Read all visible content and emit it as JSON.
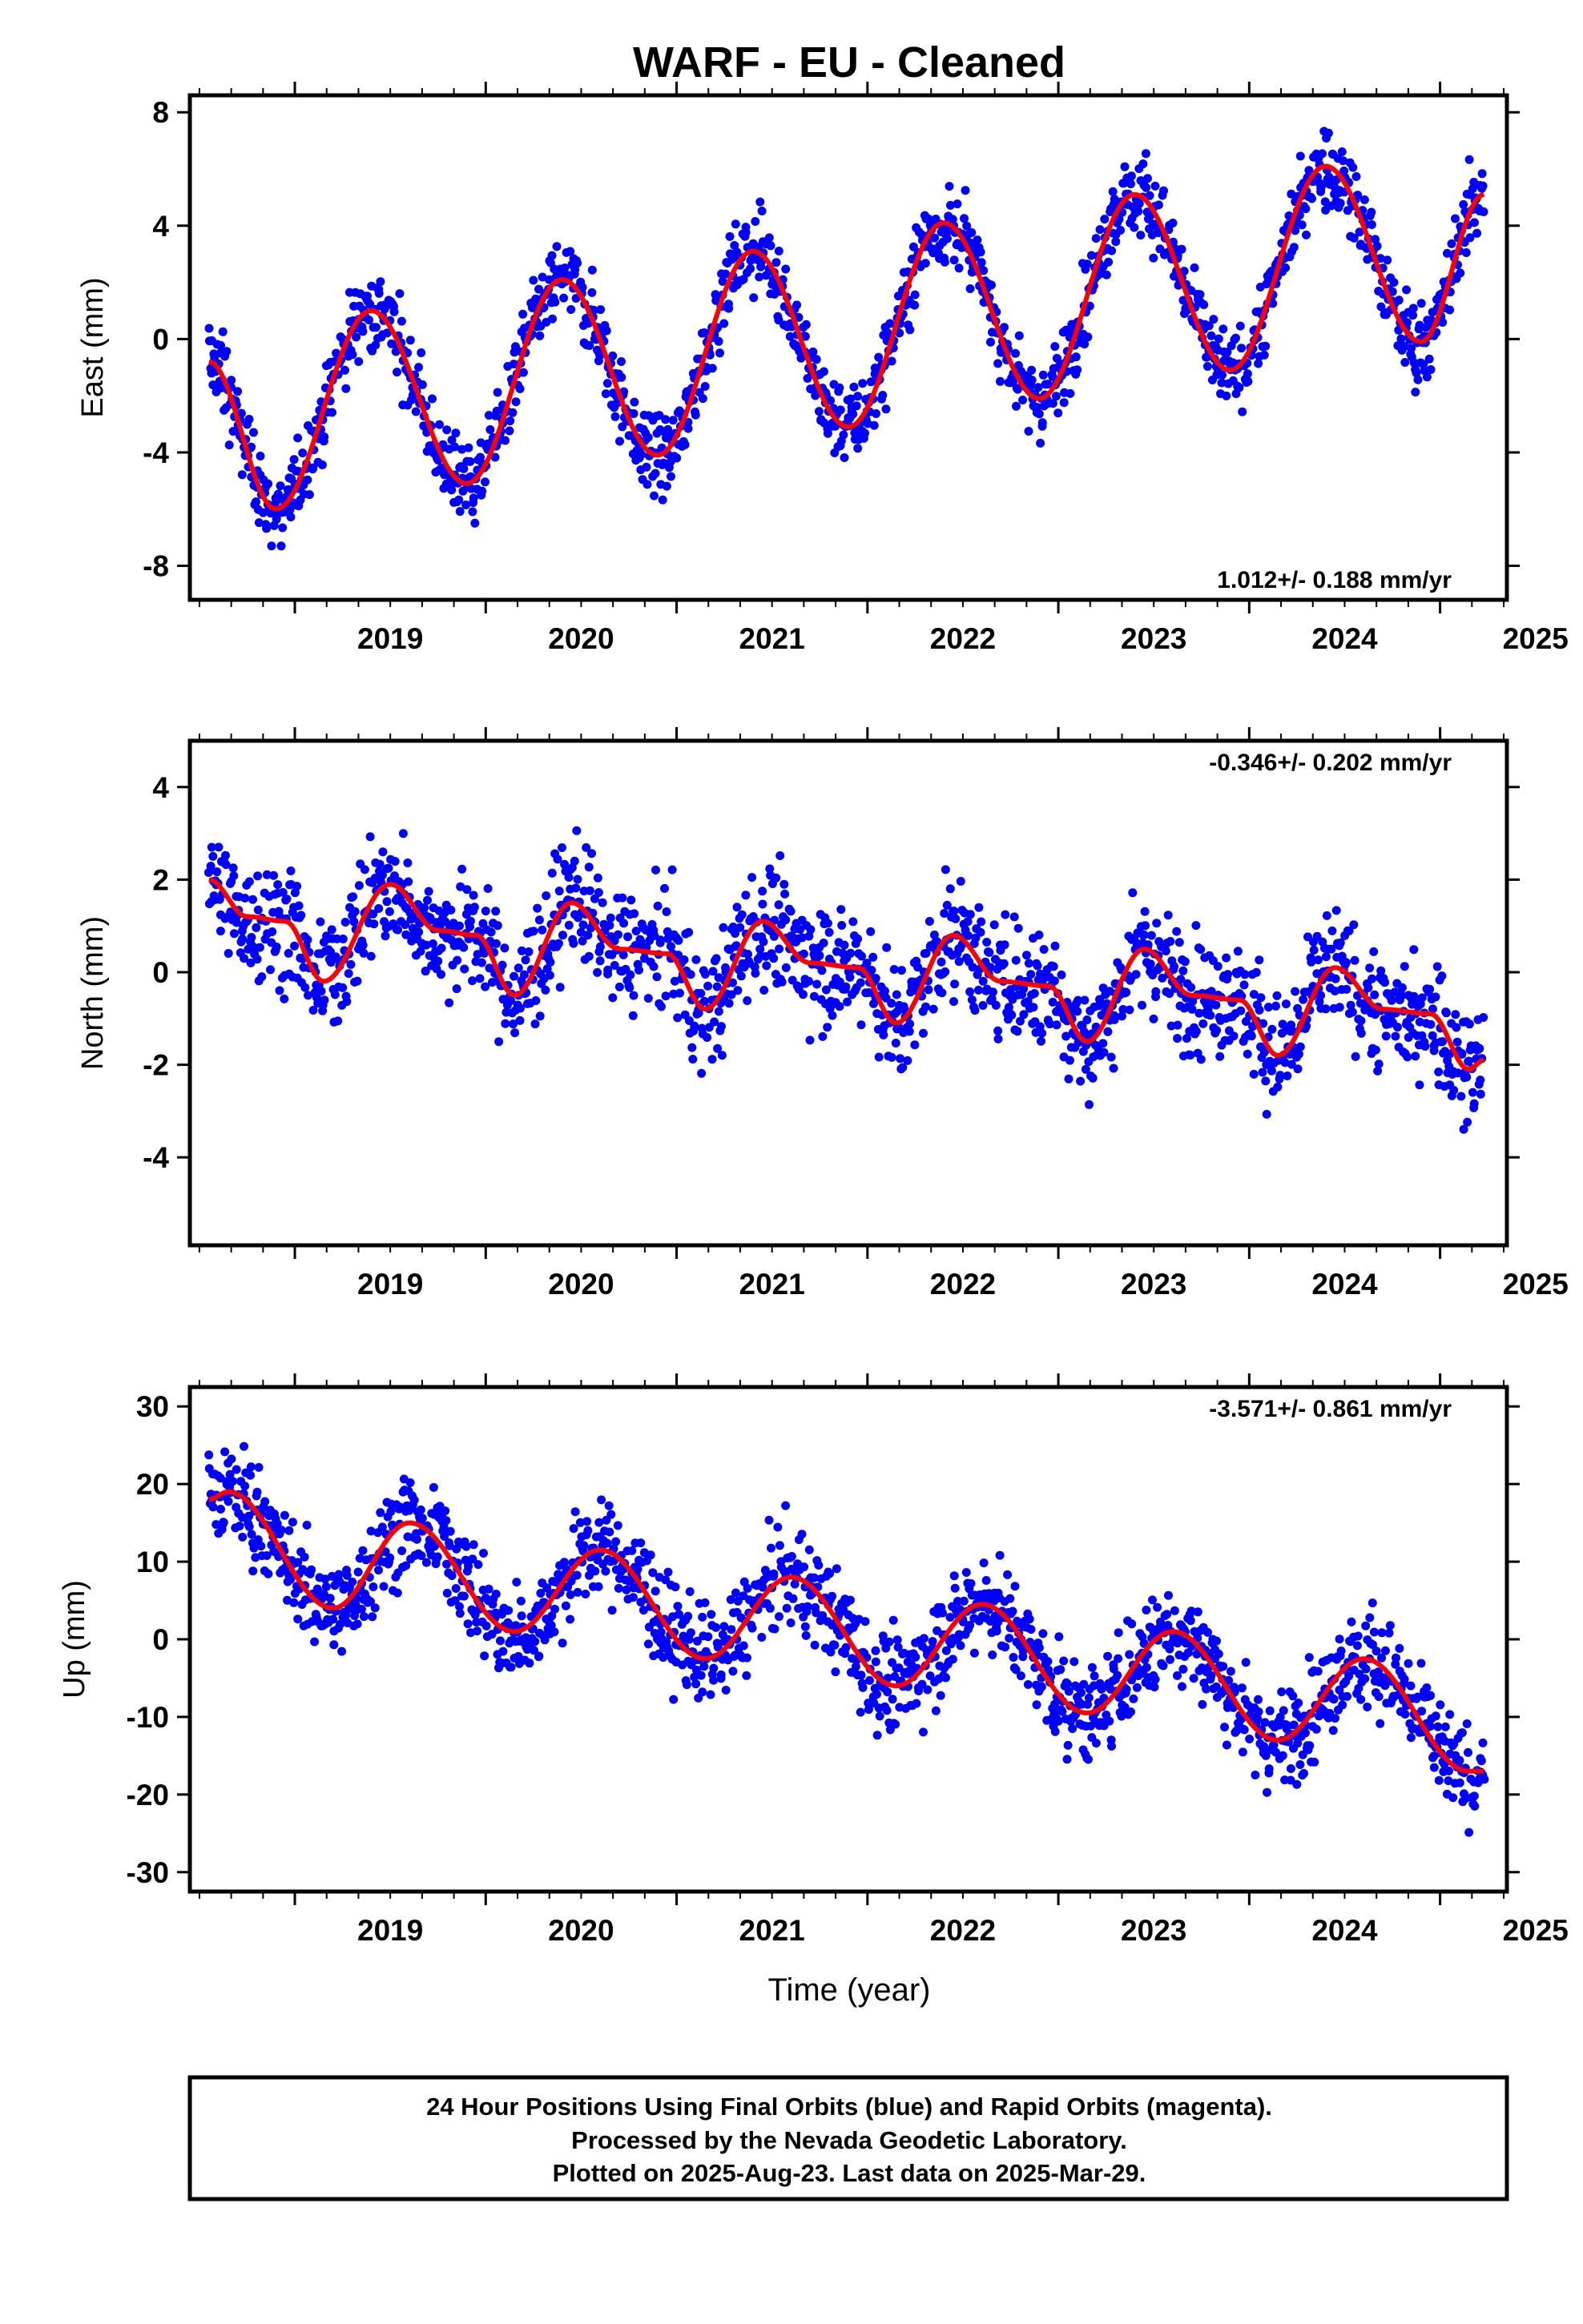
{
  "title": "WARF  - EU - Cleaned",
  "colors": {
    "points": "#0000ff",
    "fit": "#ff0000",
    "frame": "#000000"
  },
  "chart_data": [
    {
      "type": "scatter",
      "ylabel": "East (mm)",
      "xlabel": "",
      "rate_text": "1.012+/- 0.188 mm/yr",
      "rate_position": "bottom-right",
      "xlim": [
        2018.45,
        2025.35
      ],
      "ylim": [
        -9.2,
        8.6
      ],
      "xticks": [
        "2019",
        "2020",
        "2021",
        "2022",
        "2023",
        "2024",
        "2025"
      ],
      "yticks": [
        "8",
        "4",
        "0",
        "-4",
        "-8"
      ],
      "ytick_values": [
        8,
        4,
        0,
        -4,
        -8
      ],
      "grid": false,
      "series": [
        {
          "kind": "points",
          "x_range": [
            2018.55,
            2025.23
          ],
          "amplitude_mm": 3.2,
          "trend_mm_per_yr": 1.012,
          "scatter_sd_mm": 1.0
        },
        {
          "kind": "fit-line",
          "x": [
            2018.55,
            2018.9,
            2019.4,
            2019.9,
            2020.4,
            2020.9,
            2021.4,
            2021.9,
            2022.4,
            2022.9,
            2023.4,
            2023.9,
            2024.4,
            2024.9,
            2025.23
          ],
          "values": [
            -0.8,
            -6.0,
            1.0,
            -5.1,
            2.1,
            -4.1,
            3.1,
            -3.1,
            4.1,
            -2.1,
            5.1,
            -1.1,
            6.1,
            -0.1,
            5.1
          ]
        }
      ]
    },
    {
      "type": "scatter",
      "ylabel": "North (mm)",
      "xlabel": "",
      "rate_text": "-0.346+/- 0.202 mm/yr",
      "rate_position": "top-right",
      "xlim": [
        2018.45,
        2025.35
      ],
      "ylim": [
        -5.9,
        5.0
      ],
      "xticks": [
        "2019",
        "2020",
        "2021",
        "2022",
        "2023",
        "2024",
        "2025"
      ],
      "yticks": [
        "4",
        "2",
        "0",
        "-2",
        "-4"
      ],
      "ytick_values": [
        4,
        2,
        0,
        -2,
        -4
      ],
      "grid": false,
      "series": [
        {
          "kind": "points",
          "x_range": [
            2018.55,
            2025.23
          ],
          "trend_mm_per_yr": -0.346,
          "scatter_sd_mm": 0.9
        },
        {
          "kind": "fit-line",
          "x": [
            2018.55,
            2018.75,
            2018.95,
            2019.15,
            2019.5,
            2019.75,
            2019.95,
            2020.15,
            2020.45,
            2020.7,
            2020.95,
            2021.15,
            2021.45,
            2021.7,
            2021.95,
            2022.15,
            2022.45,
            2022.7,
            2022.95,
            2023.15,
            2023.45,
            2023.7,
            2023.95,
            2024.15,
            2024.45,
            2024.7,
            2024.95,
            2025.15,
            2025.23
          ],
          "values": [
            2.0,
            1.2,
            1.1,
            -0.2,
            1.9,
            0.9,
            0.8,
            -0.5,
            1.5,
            0.5,
            0.4,
            -0.8,
            1.1,
            0.2,
            0.1,
            -1.1,
            0.8,
            -0.2,
            -0.3,
            -1.5,
            0.5,
            -0.5,
            -0.6,
            -1.8,
            0.1,
            -0.8,
            -0.9,
            -2.1,
            -1.9
          ]
        }
      ]
    },
    {
      "type": "scatter",
      "ylabel": "Up (mm)",
      "xlabel": "Time (year)",
      "rate_text": "-3.571+/- 0.861 mm/yr",
      "rate_position": "top-right",
      "xlim": [
        2018.45,
        2025.35
      ],
      "ylim": [
        -32.5,
        32.5
      ],
      "xticks": [
        "2019",
        "2020",
        "2021",
        "2022",
        "2023",
        "2024",
        "2025"
      ],
      "yticks": [
        "30",
        "20",
        "10",
        "0",
        "-10",
        "-20",
        "-30"
      ],
      "ytick_values": [
        30,
        20,
        10,
        0,
        -10,
        -20,
        -30
      ],
      "grid": false,
      "series": [
        {
          "kind": "points",
          "x_range": [
            2018.55,
            2025.23
          ],
          "trend_mm_per_yr": -3.571,
          "scatter_sd_mm": 4.5
        },
        {
          "kind": "fit-line",
          "x": [
            2018.55,
            2018.65,
            2019.2,
            2019.6,
            2020.15,
            2020.6,
            2021.15,
            2021.6,
            2022.15,
            2022.6,
            2023.15,
            2023.6,
            2024.15,
            2024.6,
            2025.15,
            2025.23
          ],
          "values": [
            18.0,
            19.0,
            4.0,
            15.0,
            1.0,
            11.5,
            -2.5,
            8.0,
            -6.0,
            4.5,
            -9.5,
            1.0,
            -13.0,
            -2.5,
            -17.0,
            -17.0
          ]
        }
      ]
    }
  ],
  "footer": {
    "line1": "24 Hour Positions Using Final Orbits (blue) and Rapid Orbits (magenta).",
    "line2": "Processed by the Nevada Geodetic Laboratory.",
    "line3": "Plotted on 2025-Aug-23. Last data on 2025-Mar-29."
  }
}
